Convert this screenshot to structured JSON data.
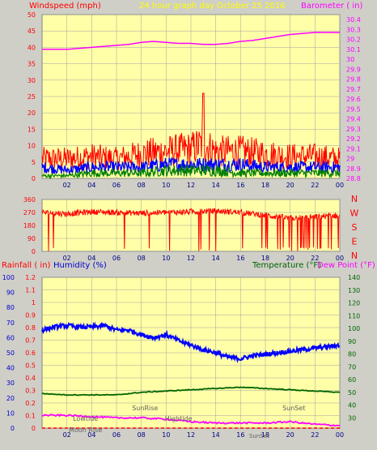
{
  "colors": {
    "background": "#cfcfc8",
    "plot_bg": "#ffffa8",
    "grid": "#a0a0a0",
    "wind_gust": "#ff0000",
    "wind_avg": "#0000ff",
    "wind_min": "#008000",
    "barometer": "#ff00ff",
    "direction": "#ff0000",
    "rain": "#ff0000",
    "humidity": "#0000ff",
    "temperature": "#006400",
    "dewpoint": "#ff00ff",
    "title": "#ffff00",
    "annotation": "#606060"
  },
  "header": {
    "left_label": "Windspeed (mph)",
    "center_label": "24 hour graph day   October 25 2016",
    "right_label": "Barometer ( in)"
  },
  "footer": {
    "rain_label": "Rainfall ( in)",
    "humidity_label": "Humidity (%)",
    "temperature_label": "Temperature (°F)",
    "dewpoint_label": "Dew Point (°F)"
  },
  "chart_data": [
    {
      "type": "line",
      "title": "24 hour graph day   October 25 2016",
      "x_ticks": [
        "02",
        "04",
        "06",
        "08",
        "10",
        "12",
        "14",
        "16",
        "18",
        "20",
        "22",
        "00"
      ],
      "left_axis": {
        "label": "Windspeed (mph)",
        "ticks": [
          0,
          5,
          10,
          15,
          20,
          25,
          30,
          35,
          40,
          45,
          50
        ],
        "ylim": [
          0,
          50
        ]
      },
      "right_axis": {
        "label": "Barometer ( in)",
        "ticks": [
          "28.8",
          "28.9",
          "29",
          "29.1",
          "29.2",
          "29.3",
          "29.4",
          "29.5",
          "29.6",
          "29.7",
          "29.8",
          "29.9",
          "30",
          "30.1",
          "30.2",
          "30.3",
          "30.4"
        ],
        "ylim": [
          28.8,
          30.45
        ]
      },
      "grid": true,
      "series": [
        {
          "name": "Barometer ( in)",
          "axis": "right",
          "hours": [
            0,
            1,
            2,
            3,
            4,
            5,
            6,
            7,
            8,
            9,
            10,
            11,
            12,
            13,
            14,
            15,
            16,
            17,
            18,
            19,
            20,
            21,
            22,
            23,
            24
          ],
          "values": [
            30.1,
            30.1,
            30.1,
            30.11,
            30.12,
            30.13,
            30.14,
            30.15,
            30.17,
            30.18,
            30.17,
            30.16,
            30.16,
            30.15,
            30.15,
            30.16,
            30.18,
            30.19,
            30.21,
            30.23,
            30.25,
            30.26,
            30.27,
            30.27,
            30.27
          ]
        },
        {
          "gust_peak_mph": 26,
          "hours": [
            0,
            2,
            4,
            6,
            8,
            10,
            12,
            13,
            14,
            16,
            18,
            20,
            22,
            24
          ],
          "values": [
            8,
            8,
            9,
            8,
            10,
            11,
            12,
            14,
            11,
            11,
            10,
            9,
            9,
            8
          ]
        },
        {
          "hours": [
            0,
            2,
            4,
            6,
            8,
            10,
            12,
            14,
            16,
            18,
            20,
            22,
            24
          ],
          "values": [
            4,
            3,
            4,
            4,
            4,
            5,
            5,
            5,
            5,
            4,
            4,
            4,
            4
          ]
        },
        {
          "hours": [
            0,
            2,
            4,
            6,
            8,
            10,
            12,
            14,
            16,
            18,
            20,
            22,
            24
          ],
          "values": [
            1,
            1,
            2,
            2,
            2,
            3,
            3,
            3,
            2,
            2,
            2,
            2,
            2
          ]
        }
      ]
    },
    {
      "type": "line",
      "right_axis_labels": [
        "N",
        "W",
        "S",
        "E",
        "N"
      ],
      "left_axis": {
        "ticks": [
          0,
          90,
          180,
          270,
          360
        ],
        "ylim": [
          0,
          360
        ]
      },
      "x_ticks": [
        "02",
        "04",
        "06",
        "08",
        "10",
        "12",
        "14",
        "16",
        "18",
        "20",
        "22",
        "00"
      ],
      "grid": true,
      "series": [
        {
          "hours": [
            0,
            2,
            4,
            6,
            8,
            10,
            12,
            14,
            16,
            18,
            20,
            22,
            24
          ],
          "values": [
            270,
            260,
            275,
            270,
            265,
            270,
            275,
            280,
            270,
            250,
            230,
            240,
            250
          ]
        }
      ]
    },
    {
      "type": "line",
      "x_ticks": [
        "02",
        "04",
        "06",
        "08",
        "10",
        "12",
        "14",
        "16",
        "18",
        "20",
        "22",
        "00"
      ],
      "axes": {
        "rain": {
          "label": "Rainfall ( in)",
          "ticks": [
            "0",
            "0.1",
            "0.2",
            "0.3",
            "0.4",
            "0.5",
            "0.6",
            "0.7",
            "0.8",
            "0.9",
            "1",
            "1.1",
            "1.2"
          ],
          "ylim": [
            0,
            1.2
          ]
        },
        "humidity": {
          "label": "Humidity (%)",
          "ticks": [
            0,
            10,
            20,
            30,
            40,
            50,
            60,
            70,
            80,
            90,
            100
          ],
          "ylim": [
            0,
            100
          ]
        },
        "temperature": {
          "label": "Temperature (°F)",
          "ticks": [
            30,
            40,
            50,
            60,
            70,
            80,
            90,
            100,
            110,
            120,
            130,
            140
          ],
          "ylim": [
            22,
            140
          ]
        }
      },
      "annotations": [
        "Lowtide",
        "SunRise",
        "Hightide",
        "SunSet",
        "Moon Rise",
        "SunSet"
      ],
      "grid": true,
      "series": [
        {
          "name": "Humidity (%)",
          "axis": "humidity",
          "hours": [
            0,
            1,
            2,
            3,
            4,
            5,
            6,
            7,
            8,
            9,
            10,
            11,
            12,
            13,
            14,
            15,
            16,
            17,
            18,
            19,
            20,
            21,
            22,
            23,
            24
          ],
          "values": [
            65,
            67,
            68,
            67,
            67,
            68,
            65,
            65,
            62,
            60,
            62,
            58,
            55,
            52,
            50,
            47,
            46,
            48,
            49,
            50,
            51,
            52,
            53,
            54,
            55
          ]
        },
        {
          "name": "Temperature (°F)",
          "axis": "temperature",
          "hours": [
            0,
            2,
            4,
            6,
            8,
            10,
            12,
            14,
            16,
            18,
            20,
            22,
            24
          ],
          "values": [
            49,
            48,
            48,
            48,
            50,
            51,
            52,
            53,
            54,
            53,
            52,
            51,
            50
          ]
        },
        {
          "name": "Dew Point (°F)",
          "axis": "temperature",
          "hours": [
            0,
            2,
            4,
            6,
            8,
            10,
            12,
            14,
            16,
            18,
            20,
            22,
            24
          ],
          "values": [
            32,
            32,
            31,
            30,
            30,
            29,
            27,
            26,
            26,
            26,
            27,
            25,
            24
          ]
        },
        {
          "name": "Rainfall ( in)",
          "axis": "rain",
          "hours": [
            0,
            24
          ],
          "values": [
            0,
            0
          ]
        }
      ]
    }
  ]
}
